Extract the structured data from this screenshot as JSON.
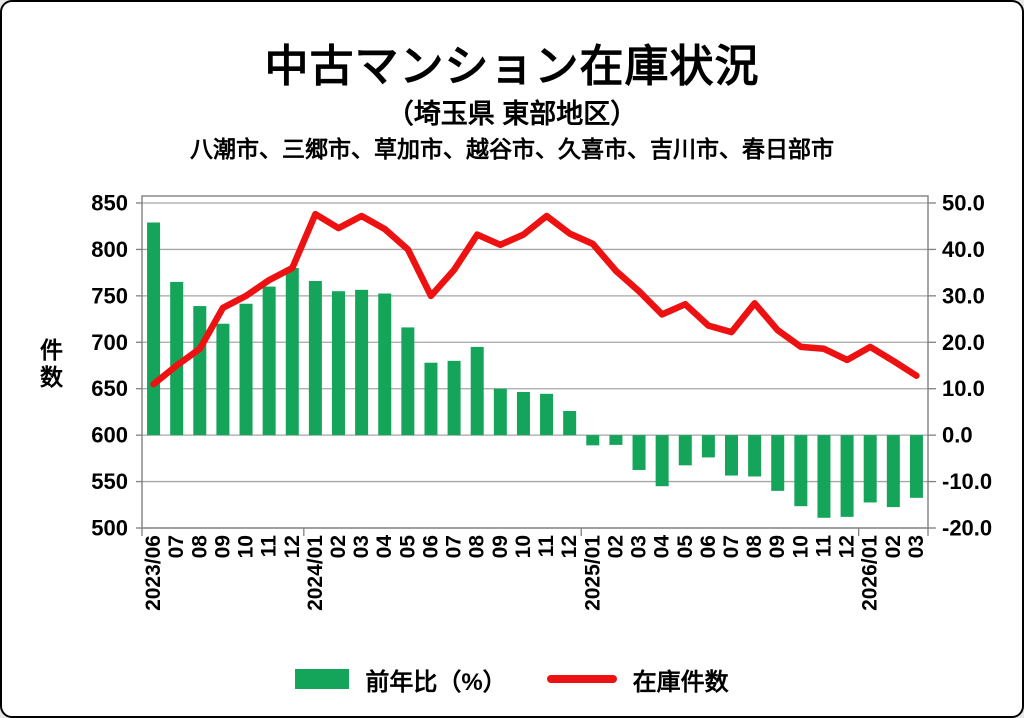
{
  "chart_data": {
    "type": "combo",
    "title": "中古マンション在庫状況",
    "subtitle": "（埼玉県 東部地区）",
    "region_line": "八潮市、三郷市、草加市、越谷市、久喜市、吉川市、春日部市",
    "categories": [
      "2023/06",
      "07",
      "08",
      "09",
      "10",
      "11",
      "12",
      "2024/01",
      "02",
      "03",
      "04",
      "05",
      "06",
      "07",
      "08",
      "09",
      "10",
      "11",
      "12",
      "2025/01",
      "02",
      "03",
      "04",
      "05",
      "06",
      "07",
      "08",
      "09",
      "10",
      "11",
      "12",
      "2026/01",
      "02",
      "03"
    ],
    "series": [
      {
        "name": "前年比（%）",
        "type": "bar",
        "axis": "right",
        "color": "#14A45A",
        "values": [
          45.8,
          33.0,
          27.8,
          24.0,
          28.3,
          32.0,
          36.0,
          33.2,
          31.0,
          31.3,
          30.5,
          23.2,
          15.6,
          16.0,
          19.0,
          10.0,
          9.3,
          8.9,
          5.2,
          -2.2,
          -2.1,
          -7.5,
          -11.0,
          -6.5,
          -4.8,
          -8.7,
          -8.9,
          -12.0,
          -15.3,
          -17.8,
          -17.6,
          -14.5,
          -15.5,
          -13.5
        ]
      },
      {
        "name": "在庫件数",
        "type": "line",
        "axis": "left",
        "color": "#EE1111",
        "values": [
          655,
          675,
          693,
          737,
          750,
          767,
          780,
          838,
          823,
          836,
          822,
          800,
          750,
          778,
          816,
          805,
          816,
          836,
          817,
          806,
          777,
          755,
          730,
          741,
          718,
          711,
          742,
          713,
          695,
          693,
          681,
          695,
          680,
          664
        ]
      }
    ],
    "axes": {
      "left": {
        "title": "件数",
        "min": 500,
        "max": 850,
        "step": 50,
        "tick_labels": [
          "850",
          "800",
          "750",
          "700",
          "650",
          "600",
          "550",
          "500"
        ]
      },
      "right": {
        "min": -20,
        "max": 50,
        "step": 10,
        "tick_labels": [
          "50.0",
          "40.0",
          "30.0",
          "20.0",
          "10.0",
          "0.0",
          "-10.0",
          "-20.0"
        ],
        "negative_label_color": "#E00000"
      }
    },
    "grid": true,
    "legend_position": "bottom"
  },
  "colors": {
    "background": "#FFFFFF",
    "outer_border": "#000000",
    "gridline": "#A6A6A6",
    "plot_border": "#808080",
    "text": "#000000"
  }
}
